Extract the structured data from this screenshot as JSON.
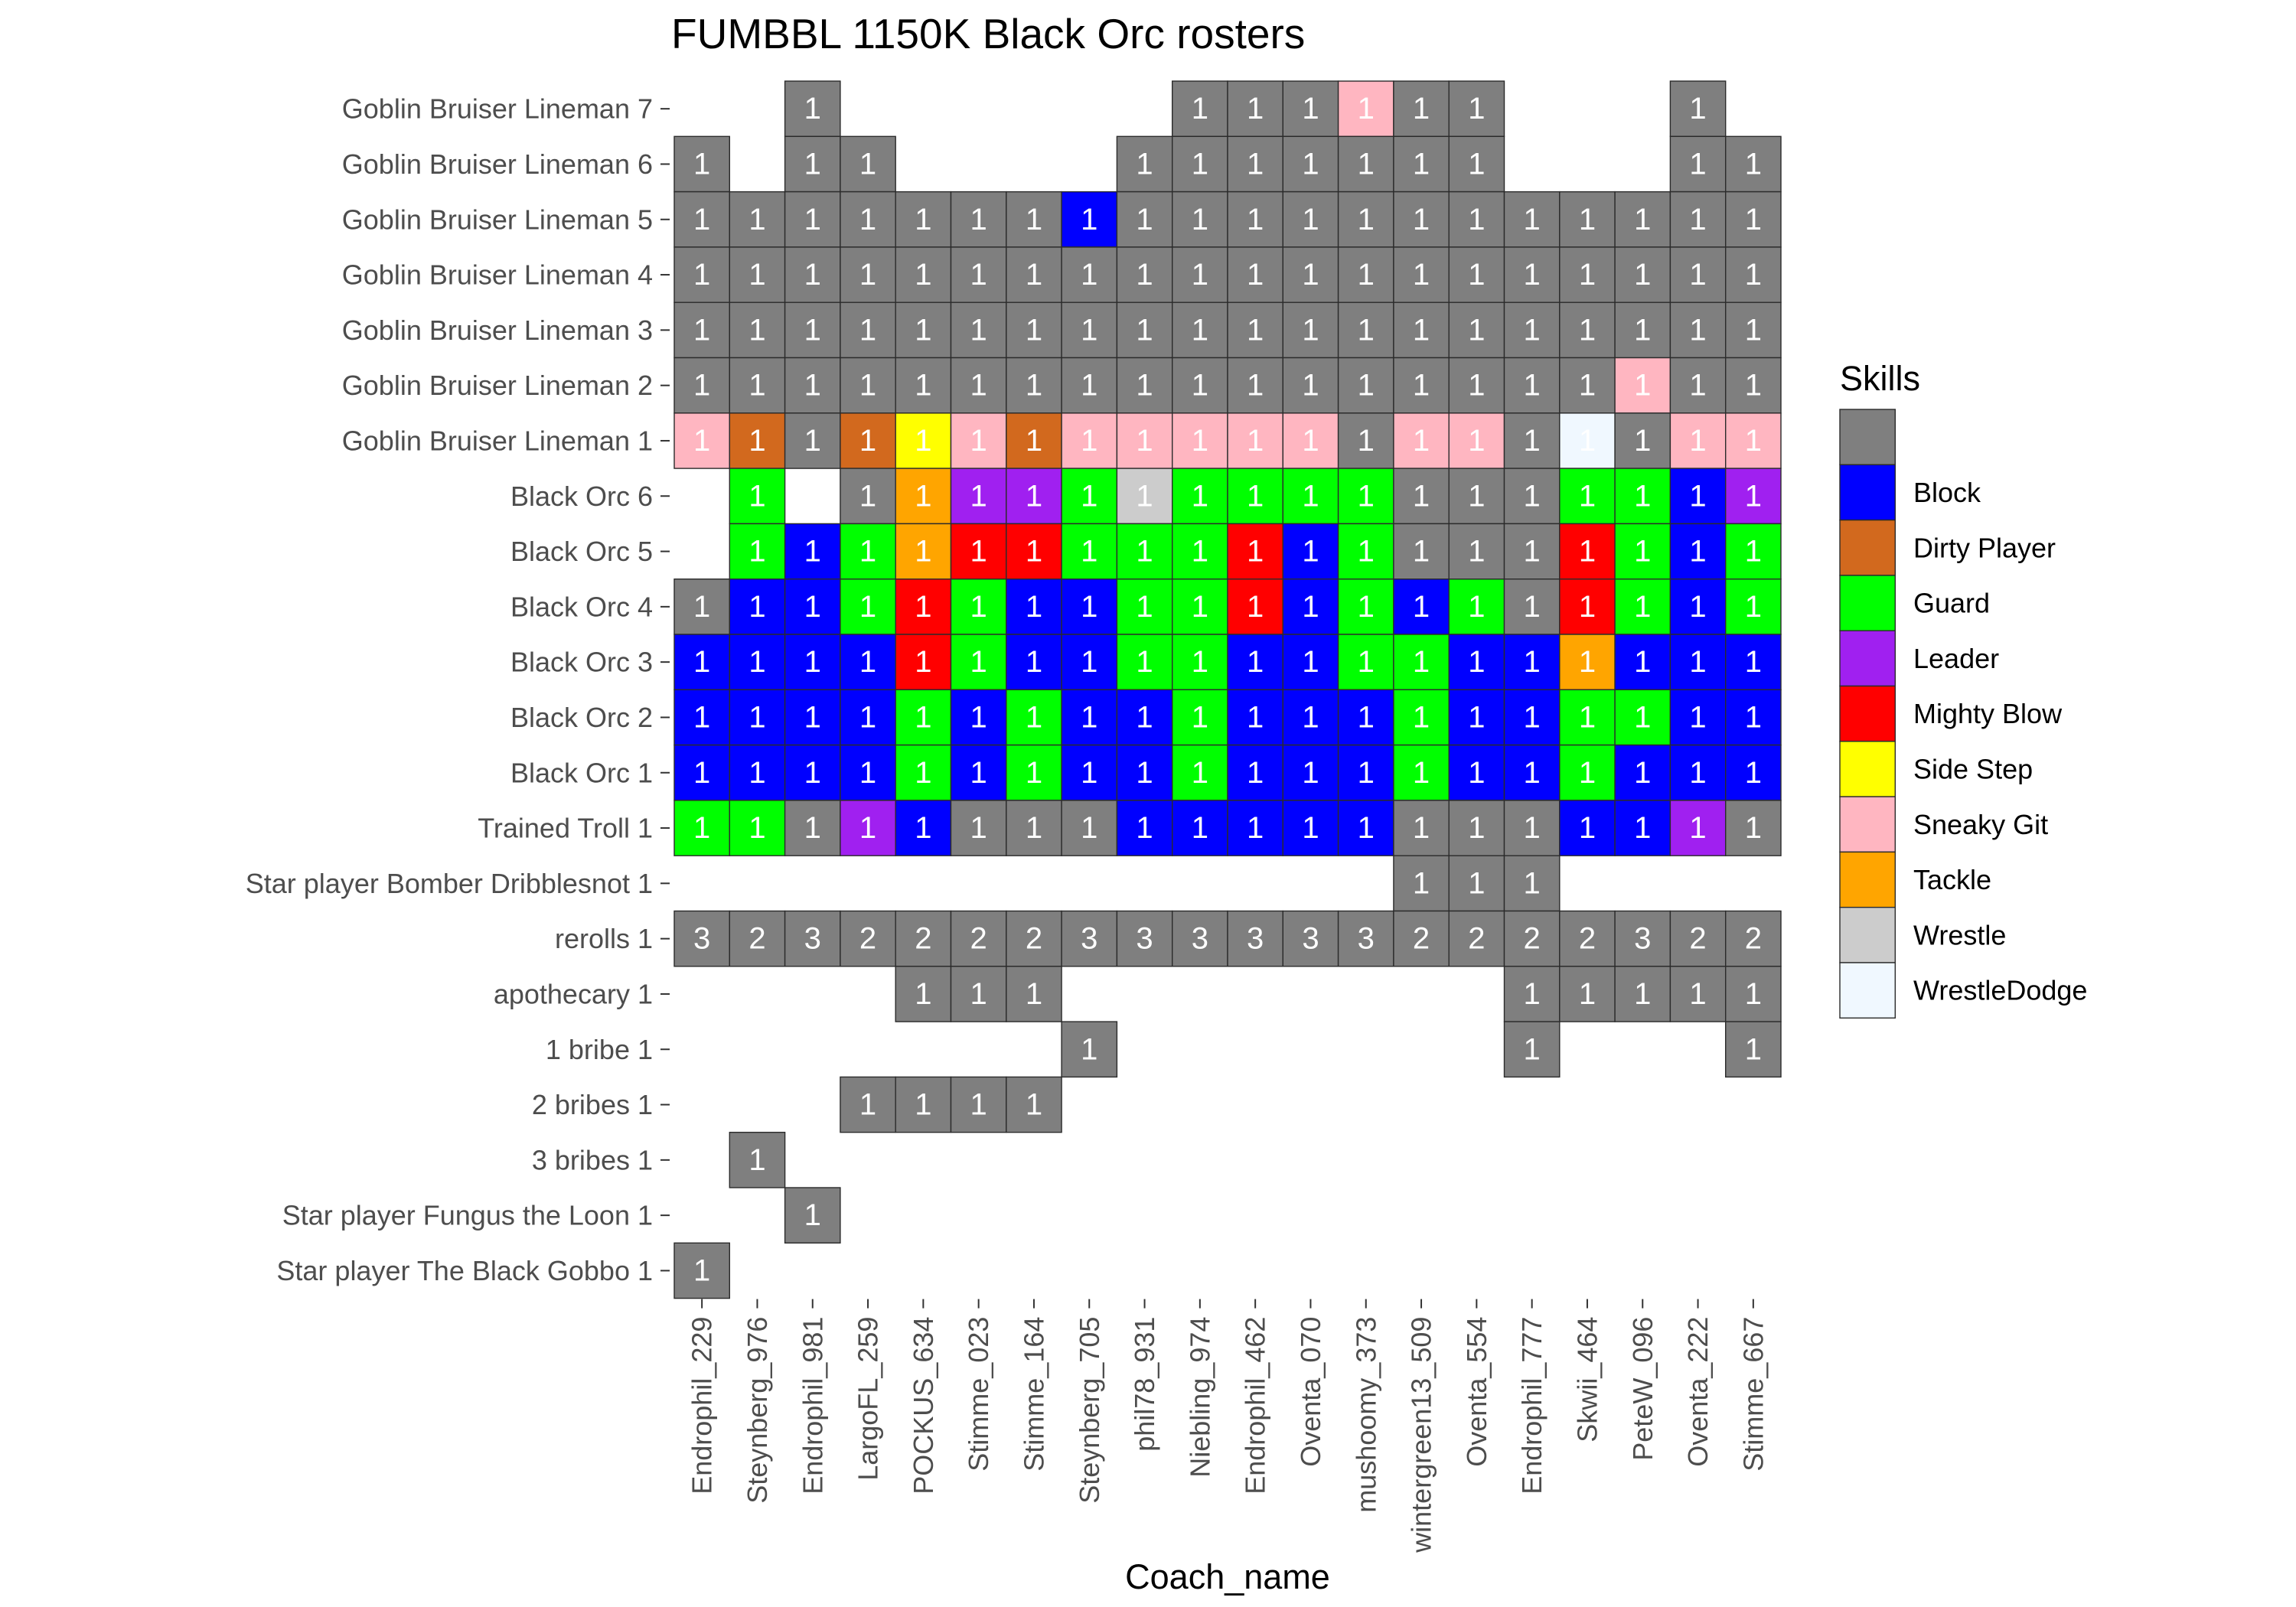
{
  "chart_data": {
    "type": "heatmap",
    "title": "FUMBBL 1150K Black Orc rosters",
    "xlabel": "Coach_name",
    "x": [
      "Endrophil_229",
      "Steynberg_976",
      "Endrophil_981",
      "LargoFL_259",
      "POCKUS_634",
      "Stimme_023",
      "Stimme_164",
      "Steynberg_705",
      "phil78_931",
      "Niebling_974",
      "Endrophil_462",
      "Oventa_070",
      "mushoomy_373",
      "wintergreen13_509",
      "Oventa_554",
      "Endrophil_777",
      "Skwii_464",
      "PeteW_096",
      "Oventa_222",
      "Stimme_667"
    ],
    "y": [
      "Goblin Bruiser Lineman 7",
      "Goblin Bruiser Lineman 6",
      "Goblin Bruiser Lineman 5",
      "Goblin Bruiser Lineman 4",
      "Goblin Bruiser Lineman 3",
      "Goblin Bruiser Lineman 2",
      "Goblin Bruiser Lineman 1",
      "Black Orc 6",
      "Black Orc 5",
      "Black Orc 4",
      "Black Orc 3",
      "Black Orc 2",
      "Black Orc 1",
      "Trained Troll 1",
      "Star player Bomber Dribblesnot 1",
      "rerolls 1",
      "apothecary 1",
      "1 bribe 1",
      "2 bribes 1",
      "3 bribes 1",
      "Star player Fungus the Loon 1",
      "Star player The Black Gobbo 1"
    ],
    "legend": {
      "title": "Skills",
      "position": "right",
      "entries": [
        {
          "label": "",
          "color": "#7F7F7F"
        },
        {
          "label": "Block",
          "color": "#0000FF"
        },
        {
          "label": "Dirty Player",
          "color": "#D2691E"
        },
        {
          "label": "Guard",
          "color": "#00FF00"
        },
        {
          "label": "Leader",
          "color": "#A020F0"
        },
        {
          "label": "Mighty Blow",
          "color": "#FF0000"
        },
        {
          "label": "Side Step",
          "color": "#FFFF00"
        },
        {
          "label": "Sneaky Git",
          "color": "#FFB6C1"
        },
        {
          "label": "Tackle",
          "color": "#FFA500"
        },
        {
          "label": "Wrestle",
          "color": "#CCCCCC"
        },
        {
          "label": "WrestleDodge",
          "color": "#F0F8FF"
        }
      ]
    },
    "values": [
      [
        null,
        null,
        1,
        null,
        null,
        null,
        null,
        null,
        null,
        1,
        1,
        1,
        1,
        1,
        1,
        null,
        null,
        null,
        1,
        null
      ],
      [
        1,
        null,
        1,
        1,
        null,
        null,
        null,
        null,
        1,
        1,
        1,
        1,
        1,
        1,
        1,
        null,
        null,
        null,
        1,
        1
      ],
      [
        1,
        1,
        1,
        1,
        1,
        1,
        1,
        1,
        1,
        1,
        1,
        1,
        1,
        1,
        1,
        1,
        1,
        1,
        1,
        1
      ],
      [
        1,
        1,
        1,
        1,
        1,
        1,
        1,
        1,
        1,
        1,
        1,
        1,
        1,
        1,
        1,
        1,
        1,
        1,
        1,
        1
      ],
      [
        1,
        1,
        1,
        1,
        1,
        1,
        1,
        1,
        1,
        1,
        1,
        1,
        1,
        1,
        1,
        1,
        1,
        1,
        1,
        1
      ],
      [
        1,
        1,
        1,
        1,
        1,
        1,
        1,
        1,
        1,
        1,
        1,
        1,
        1,
        1,
        1,
        1,
        1,
        1,
        1,
        1
      ],
      [
        1,
        1,
        1,
        1,
        1,
        1,
        1,
        1,
        1,
        1,
        1,
        1,
        1,
        1,
        1,
        1,
        1,
        1,
        1,
        1
      ],
      [
        null,
        1,
        null,
        1,
        1,
        1,
        1,
        1,
        1,
        1,
        1,
        1,
        1,
        1,
        1,
        1,
        1,
        1,
        1,
        1
      ],
      [
        null,
        1,
        1,
        1,
        1,
        1,
        1,
        1,
        1,
        1,
        1,
        1,
        1,
        1,
        1,
        1,
        1,
        1,
        1,
        1
      ],
      [
        1,
        1,
        1,
        1,
        1,
        1,
        1,
        1,
        1,
        1,
        1,
        1,
        1,
        1,
        1,
        1,
        1,
        1,
        1,
        1
      ],
      [
        1,
        1,
        1,
        1,
        1,
        1,
        1,
        1,
        1,
        1,
        1,
        1,
        1,
        1,
        1,
        1,
        1,
        1,
        1,
        1
      ],
      [
        1,
        1,
        1,
        1,
        1,
        1,
        1,
        1,
        1,
        1,
        1,
        1,
        1,
        1,
        1,
        1,
        1,
        1,
        1,
        1
      ],
      [
        1,
        1,
        1,
        1,
        1,
        1,
        1,
        1,
        1,
        1,
        1,
        1,
        1,
        1,
        1,
        1,
        1,
        1,
        1,
        1
      ],
      [
        1,
        1,
        1,
        1,
        1,
        1,
        1,
        1,
        1,
        1,
        1,
        1,
        1,
        1,
        1,
        1,
        1,
        1,
        1,
        1
      ],
      [
        null,
        null,
        null,
        null,
        null,
        null,
        null,
        null,
        null,
        null,
        null,
        null,
        null,
        1,
        1,
        1,
        null,
        null,
        null,
        null
      ],
      [
        3,
        2,
        3,
        2,
        2,
        2,
        2,
        3,
        3,
        3,
        3,
        3,
        3,
        2,
        2,
        2,
        2,
        3,
        2,
        2
      ],
      [
        null,
        null,
        null,
        null,
        1,
        1,
        1,
        null,
        null,
        null,
        null,
        null,
        null,
        null,
        null,
        1,
        1,
        1,
        1,
        1
      ],
      [
        null,
        null,
        null,
        null,
        null,
        null,
        null,
        1,
        null,
        null,
        null,
        null,
        null,
        null,
        null,
        1,
        null,
        null,
        null,
        1
      ],
      [
        null,
        null,
        null,
        1,
        1,
        1,
        1,
        null,
        null,
        null,
        null,
        null,
        null,
        null,
        null,
        null,
        null,
        null,
        null,
        null
      ],
      [
        null,
        1,
        null,
        null,
        null,
        null,
        null,
        null,
        null,
        null,
        null,
        null,
        null,
        null,
        null,
        null,
        null,
        null,
        null,
        null
      ],
      [
        null,
        null,
        1,
        null,
        null,
        null,
        null,
        null,
        null,
        null,
        null,
        null,
        null,
        null,
        null,
        null,
        null,
        null,
        null,
        null
      ],
      [
        1,
        null,
        null,
        null,
        null,
        null,
        null,
        null,
        null,
        null,
        null,
        null,
        null,
        null,
        null,
        null,
        null,
        null,
        null,
        null
      ]
    ],
    "skills": [
      [
        null,
        null,
        "",
        null,
        null,
        null,
        null,
        null,
        null,
        "",
        "",
        "",
        "Sneaky Git",
        "",
        "",
        null,
        null,
        null,
        "",
        null
      ],
      [
        "",
        null,
        "",
        "",
        null,
        null,
        null,
        null,
        "",
        "",
        "",
        "",
        "",
        "",
        "",
        null,
        null,
        null,
        "",
        ""
      ],
      [
        "",
        "",
        "",
        "",
        "",
        "",
        "",
        "Block",
        "",
        "",
        "",
        "",
        "",
        "",
        "",
        "",
        "",
        "",
        "",
        ""
      ],
      [
        "",
        "",
        "",
        "",
        "",
        "",
        "",
        "",
        "",
        "",
        "",
        "",
        "",
        "",
        "",
        "",
        "",
        "",
        "",
        ""
      ],
      [
        "",
        "",
        "",
        "",
        "",
        "",
        "",
        "",
        "",
        "",
        "",
        "",
        "",
        "",
        "",
        "",
        "",
        "",
        "",
        ""
      ],
      [
        "",
        "",
        "",
        "",
        "",
        "",
        "",
        "",
        "",
        "",
        "",
        "",
        "",
        "",
        "",
        "",
        "",
        "Sneaky Git",
        "",
        ""
      ],
      [
        "Sneaky Git",
        "Dirty Player",
        "",
        "Dirty Player",
        "Side Step",
        "Sneaky Git",
        "Dirty Player",
        "Sneaky Git",
        "Sneaky Git",
        "Sneaky Git",
        "Sneaky Git",
        "Sneaky Git",
        "",
        "Sneaky Git",
        "Sneaky Git",
        "",
        "WrestleDodge",
        "",
        "Sneaky Git",
        "Sneaky Git"
      ],
      [
        null,
        "Guard",
        null,
        "",
        "Tackle",
        "Leader",
        "Leader",
        "Guard",
        "Wrestle",
        "Guard",
        "Guard",
        "Guard",
        "Guard",
        "",
        "",
        "",
        "Guard",
        "Guard",
        "Block",
        "Leader"
      ],
      [
        null,
        "Guard",
        "Block",
        "Guard",
        "Tackle",
        "Mighty Blow",
        "Mighty Blow",
        "Guard",
        "Guard",
        "Guard",
        "Mighty Blow",
        "Block",
        "Guard",
        "",
        "",
        "",
        "Mighty Blow",
        "Guard",
        "Block",
        "Guard"
      ],
      [
        "",
        "Block",
        "Block",
        "Guard",
        "Mighty Blow",
        "Guard",
        "Block",
        "Block",
        "Guard",
        "Guard",
        "Mighty Blow",
        "Block",
        "Guard",
        "Block",
        "Guard",
        "",
        "Mighty Blow",
        "Guard",
        "Block",
        "Guard"
      ],
      [
        "Block",
        "Block",
        "Block",
        "Block",
        "Mighty Blow",
        "Guard",
        "Block",
        "Block",
        "Guard",
        "Guard",
        "Block",
        "Block",
        "Guard",
        "Guard",
        "Block",
        "Block",
        "Tackle",
        "Block",
        "Block",
        "Block"
      ],
      [
        "Block",
        "Block",
        "Block",
        "Block",
        "Guard",
        "Block",
        "Guard",
        "Block",
        "Block",
        "Guard",
        "Block",
        "Block",
        "Block",
        "Guard",
        "Block",
        "Block",
        "Guard",
        "Guard",
        "Block",
        "Block"
      ],
      [
        "Block",
        "Block",
        "Block",
        "Block",
        "Guard",
        "Block",
        "Guard",
        "Block",
        "Block",
        "Guard",
        "Block",
        "Block",
        "Block",
        "Guard",
        "Block",
        "Block",
        "Guard",
        "Block",
        "Block",
        "Block"
      ],
      [
        "Guard",
        "Guard",
        "",
        "Leader",
        "Block",
        "",
        "",
        "",
        "Block",
        "Block",
        "Block",
        "Block",
        "Block",
        "",
        "",
        "",
        "Block",
        "Block",
        "Leader",
        ""
      ],
      [
        null,
        null,
        null,
        null,
        null,
        null,
        null,
        null,
        null,
        null,
        null,
        null,
        null,
        "",
        "",
        "",
        null,
        null,
        null,
        null
      ],
      [
        "",
        "",
        "",
        "",
        "",
        "",
        "",
        "",
        "",
        "",
        "",
        "",
        "",
        "",
        "",
        "",
        "",
        "",
        "",
        ""
      ],
      [
        null,
        null,
        null,
        null,
        "",
        "",
        "",
        null,
        null,
        null,
        null,
        null,
        null,
        null,
        null,
        "",
        "",
        "",
        "",
        ""
      ],
      [
        null,
        null,
        null,
        null,
        null,
        null,
        null,
        "",
        null,
        null,
        null,
        null,
        null,
        null,
        null,
        "",
        null,
        null,
        null,
        ""
      ],
      [
        null,
        null,
        null,
        "",
        "",
        "",
        "",
        null,
        null,
        null,
        null,
        null,
        null,
        null,
        null,
        null,
        null,
        null,
        null,
        null
      ],
      [
        null,
        "",
        null,
        null,
        null,
        null,
        null,
        null,
        null,
        null,
        null,
        null,
        null,
        null,
        null,
        null,
        null,
        null,
        null,
        null
      ],
      [
        null,
        null,
        "",
        null,
        null,
        null,
        null,
        null,
        null,
        null,
        null,
        null,
        null,
        null,
        null,
        null,
        null,
        null,
        null,
        null
      ],
      [
        "",
        null,
        null,
        null,
        null,
        null,
        null,
        null,
        null,
        null,
        null,
        null,
        null,
        null,
        null,
        null,
        null,
        null,
        null,
        null
      ]
    ]
  }
}
